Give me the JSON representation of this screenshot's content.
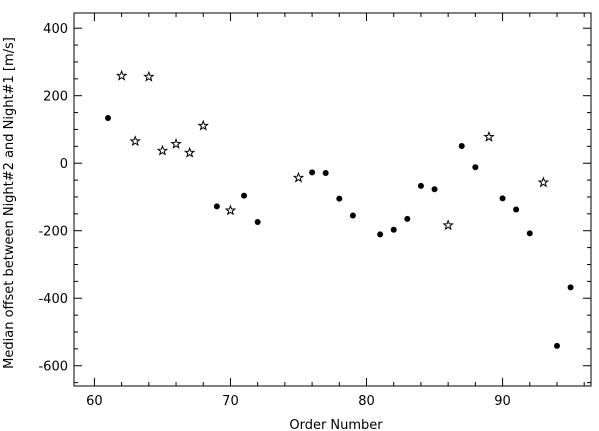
{
  "chart_data": {
    "type": "scatter",
    "xlabel": "Order Number",
    "ylabel": "Median offset between Night#2 and Night#1 [m/s]",
    "xlim": [
      58.5,
      96.5
    ],
    "ylim": [
      -660,
      445
    ],
    "xticks": [
      60,
      70,
      80,
      90
    ],
    "yticks": [
      -600,
      -400,
      -200,
      0,
      200,
      400
    ],
    "minor_x_step": 2,
    "minor_y_step": 50,
    "grid": false,
    "legend": "none",
    "series": [
      {
        "marker": "filled-circle",
        "color": "#000000",
        "points": [
          [
            61,
            134
          ],
          [
            69,
            -128
          ],
          [
            71,
            -96
          ],
          [
            72,
            -174
          ],
          [
            76,
            -27
          ],
          [
            77,
            -29
          ],
          [
            78,
            -105
          ],
          [
            79,
            -155
          ],
          [
            81,
            -211
          ],
          [
            82,
            -197
          ],
          [
            83,
            -165
          ],
          [
            84,
            -67
          ],
          [
            85,
            -77
          ],
          [
            87,
            51
          ],
          [
            88,
            -12
          ],
          [
            90,
            -104
          ],
          [
            91,
            -137
          ],
          [
            92,
            -208
          ],
          [
            94,
            -541
          ],
          [
            95,
            -368
          ]
        ]
      },
      {
        "marker": "open-star",
        "color": "#000000",
        "points": [
          [
            62,
            259
          ],
          [
            63,
            65
          ],
          [
            64,
            256
          ],
          [
            65,
            37
          ],
          [
            66,
            57
          ],
          [
            67,
            31
          ],
          [
            68,
            111
          ],
          [
            70,
            -140
          ],
          [
            75,
            -43
          ],
          [
            86,
            -184
          ],
          [
            89,
            78
          ],
          [
            93,
            -57
          ]
        ]
      }
    ]
  }
}
